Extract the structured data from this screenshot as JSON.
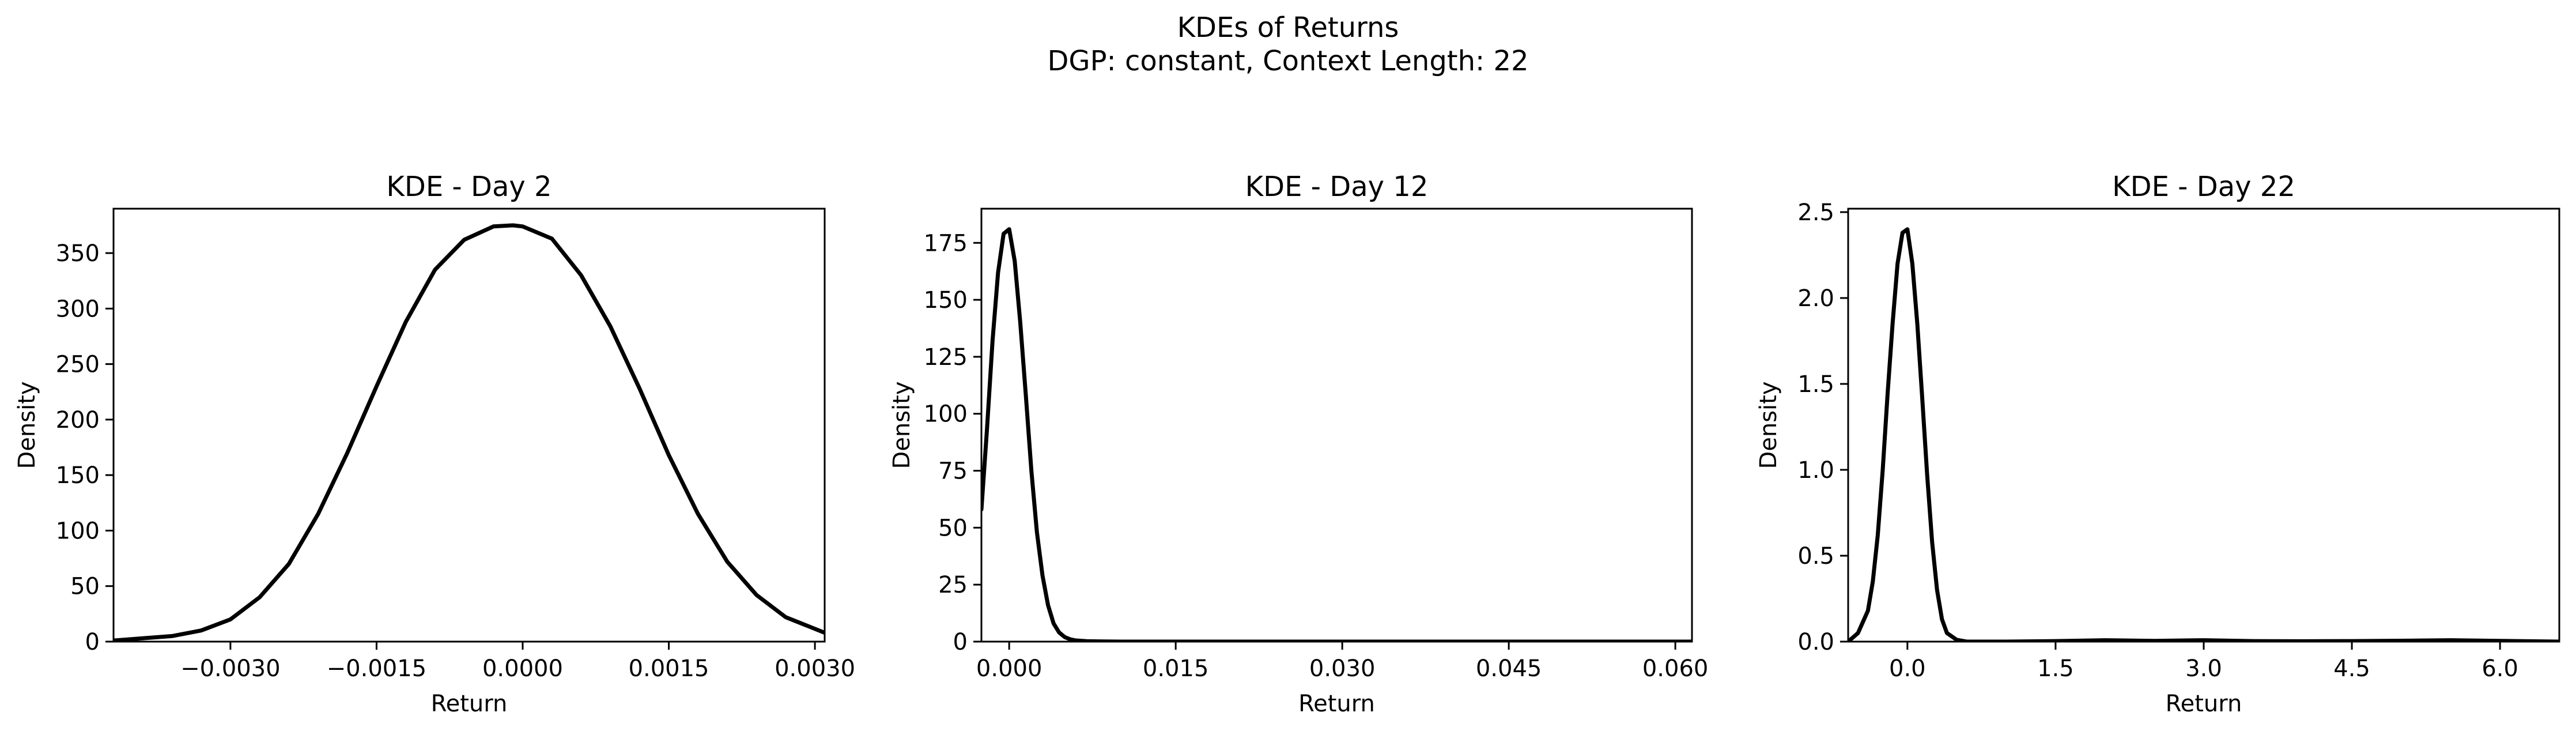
{
  "figure": {
    "title_line1": "KDEs of Returns",
    "title_line2": "DGP: constant, Context Length: 22"
  },
  "chart_data": [
    {
      "type": "line",
      "title": "KDE - Day 2",
      "xlabel": "Return",
      "ylabel": "Density",
      "xlim": [
        -0.0042,
        0.0031
      ],
      "ylim": [
        0,
        390
      ],
      "xticks": [
        -0.003,
        -0.0015,
        0.0,
        0.0015,
        0.003
      ],
      "xtick_labels": [
        "−0.0030",
        "−0.0015",
        "0.0000",
        "0.0015",
        "0.0030"
      ],
      "yticks": [
        0,
        50,
        100,
        150,
        200,
        250,
        300,
        350
      ],
      "ytick_labels": [
        "0",
        "50",
        "100",
        "150",
        "200",
        "250",
        "300",
        "350"
      ],
      "line_color": "#000000",
      "series": [
        {
          "x": [
            -0.0042,
            -0.0039,
            -0.0036,
            -0.0033,
            -0.003,
            -0.0027,
            -0.0024,
            -0.0021,
            -0.0018,
            -0.0015,
            -0.0012,
            -0.0009,
            -0.0006,
            -0.0003,
            -0.0001,
            0.0,
            0.0003,
            0.0006,
            0.0009,
            0.0012,
            0.0015,
            0.0018,
            0.0021,
            0.0024,
            0.0027,
            0.0031
          ],
          "y": [
            1,
            3,
            5,
            10,
            20,
            40,
            70,
            115,
            170,
            230,
            288,
            335,
            362,
            374,
            375,
            374,
            363,
            330,
            284,
            228,
            168,
            115,
            72,
            42,
            22,
            8
          ]
        }
      ]
    },
    {
      "type": "line",
      "title": "KDE - Day 12",
      "xlabel": "Return",
      "ylabel": "Density",
      "xlim": [
        -0.0025,
        0.0615
      ],
      "ylim": [
        0,
        190
      ],
      "xticks": [
        0.0,
        0.015,
        0.03,
        0.045,
        0.06
      ],
      "xtick_labels": [
        "0.000",
        "0.015",
        "0.030",
        "0.045",
        "0.060"
      ],
      "yticks": [
        0,
        25,
        50,
        75,
        100,
        125,
        150,
        175
      ],
      "ytick_labels": [
        "0",
        "25",
        "50",
        "75",
        "100",
        "125",
        "150",
        "175"
      ],
      "line_color": "#000000",
      "series": [
        {
          "x": [
            -0.0025,
            -0.002,
            -0.0015,
            -0.001,
            -0.0005,
            0.0,
            0.0005,
            0.001,
            0.0015,
            0.002,
            0.0025,
            0.003,
            0.0035,
            0.004,
            0.0045,
            0.005,
            0.0055,
            0.006,
            0.007,
            0.008,
            0.01,
            0.02,
            0.03,
            0.045,
            0.0615
          ],
          "y": [
            58,
            93,
            132,
            162,
            179,
            181,
            167,
            140,
            108,
            75,
            48,
            29,
            16,
            8,
            4,
            2,
            1,
            0.5,
            0.2,
            0.1,
            0,
            0,
            0,
            0,
            0
          ]
        }
      ]
    },
    {
      "type": "line",
      "title": "KDE - Day 22",
      "xlabel": "Return",
      "ylabel": "Density",
      "xlim": [
        -0.6,
        6.6
      ],
      "ylim": [
        0,
        2.52
      ],
      "xticks": [
        0.0,
        1.5,
        3.0,
        4.5,
        6.0
      ],
      "xtick_labels": [
        "0.0",
        "1.5",
        "3.0",
        "4.5",
        "6.0"
      ],
      "yticks": [
        0.0,
        0.5,
        1.0,
        1.5,
        2.0,
        2.5
      ],
      "ytick_labels": [
        "0.0",
        "0.5",
        "1.0",
        "1.5",
        "2.0",
        "2.5"
      ],
      "line_color": "#000000",
      "series": [
        {
          "x": [
            -0.6,
            -0.5,
            -0.4,
            -0.35,
            -0.3,
            -0.25,
            -0.2,
            -0.15,
            -0.1,
            -0.05,
            0.0,
            0.05,
            0.1,
            0.15,
            0.2,
            0.25,
            0.3,
            0.35,
            0.4,
            0.5,
            0.6,
            0.8,
            1.0,
            1.5,
            2.0,
            2.5,
            3.0,
            3.5,
            4.0,
            4.5,
            5.0,
            5.5,
            6.0,
            6.6
          ],
          "y": [
            0,
            0.05,
            0.18,
            0.35,
            0.62,
            1.0,
            1.45,
            1.85,
            2.2,
            2.38,
            2.4,
            2.2,
            1.85,
            1.42,
            0.97,
            0.58,
            0.3,
            0.13,
            0.05,
            0.01,
            0,
            0,
            0,
            0.003,
            0.008,
            0.004,
            0.008,
            0.003,
            0.002,
            0.003,
            0.005,
            0.008,
            0.004,
            0
          ]
        }
      ]
    }
  ]
}
